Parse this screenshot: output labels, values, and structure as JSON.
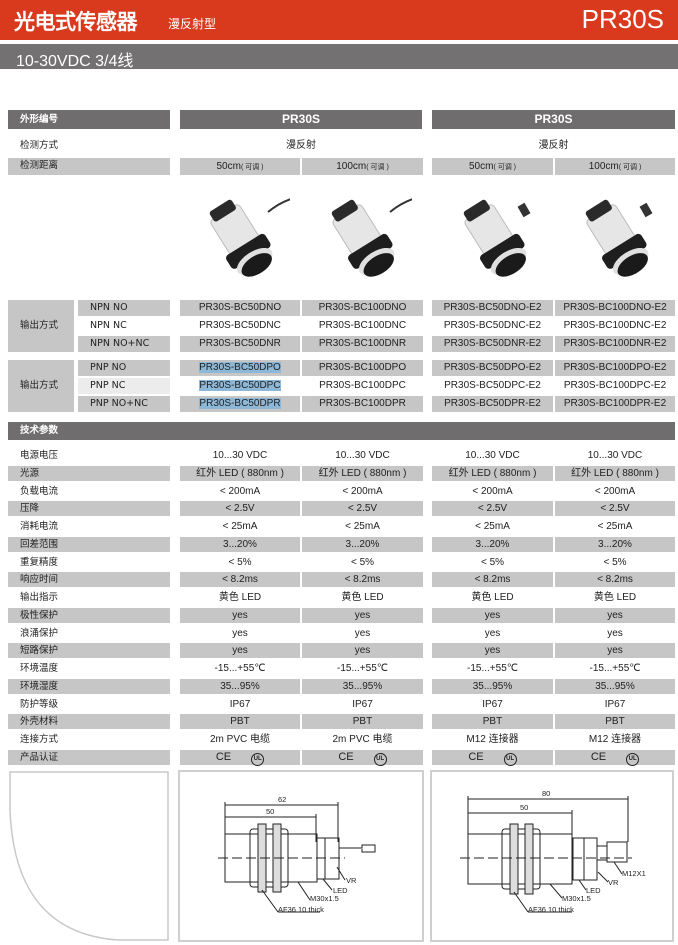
{
  "header": {
    "title": "光电式传感器",
    "subtitle": "漫反射型",
    "model": "PR30S"
  },
  "subheader": "10-30VDC 3/4线",
  "colors": {
    "brand_red": "#d9391c",
    "bar_gray": "#737172",
    "cell_gray": "#c6c6c6",
    "highlight": "#8db7d6"
  },
  "table": {
    "shape_label": "外形编号",
    "groups": [
      "PR30S",
      "PR30S"
    ],
    "detect_mode": {
      "label": "检测方式",
      "values": [
        "漫反射",
        "漫反射"
      ]
    },
    "detect_range": {
      "label": "检测距离",
      "values": [
        {
          "v": "50cm",
          "note": "( 可调 )"
        },
        {
          "v": "100cm",
          "note": "( 可调 )"
        },
        {
          "v": "50cm",
          "note": "( 可调 )"
        },
        {
          "v": "100cm",
          "note": "( 可调 )"
        }
      ]
    },
    "npn": {
      "label": "输出方式",
      "rows": [
        {
          "type": "NPN NO",
          "models": [
            "PR30S-BC50DNO",
            "PR30S-BC100DNO",
            "PR30S-BC50DNO-E2",
            "PR30S-BC100DNO-E2"
          ]
        },
        {
          "type": "NPN NC",
          "models": [
            "PR30S-BC50DNC",
            "PR30S-BC100DNC",
            "PR30S-BC50DNC-E2",
            "PR30S-BC100DNC-E2"
          ]
        },
        {
          "type": "NPN NO+NC",
          "models": [
            "PR30S-BC50DNR",
            "PR30S-BC100DNR",
            "PR30S-BC50DNR-E2",
            "PR30S-BC100DNR-E2"
          ]
        }
      ]
    },
    "pnp": {
      "label": "输出方式",
      "rows": [
        {
          "type": "PNP NO",
          "models": [
            "PR30S-BC50DPO",
            "PR30S-BC100DPO",
            "PR30S-BC50DPO-E2",
            "PR30S-BC100DPO-E2"
          ]
        },
        {
          "type": "PNP NC",
          "models": [
            "PR30S-BC50DPC",
            "PR30S-BC100DPC",
            "PR30S-BC50DPC-E2",
            "PR30S-BC100DPC-E2"
          ]
        },
        {
          "type": "PNP NO+NC",
          "models": [
            "PR30S-BC50DPR",
            "PR30S-BC100DPR",
            "PR30S-BC50DPR-E2",
            "PR30S-BC100DPR-E2"
          ]
        }
      ]
    },
    "tech_label": "技术参数",
    "specs": [
      {
        "label": "电源电压",
        "values": [
          "10...30 VDC",
          "10...30 VDC",
          "10...30 VDC",
          "10...30 VDC"
        ]
      },
      {
        "label": "光源",
        "values": [
          "红外 LED ( 880nm )",
          "红外 LED ( 880nm )",
          "红外 LED ( 880nm )",
          "红外 LED ( 880nm )"
        ]
      },
      {
        "label": "负载电流",
        "values": [
          "< 200mA",
          "< 200mA",
          "< 200mA",
          "< 200mA"
        ]
      },
      {
        "label": "压降",
        "values": [
          "< 2.5V",
          "< 2.5V",
          "< 2.5V",
          "< 2.5V"
        ]
      },
      {
        "label": "消耗电流",
        "values": [
          "< 25mA",
          "< 25mA",
          "< 25mA",
          "< 25mA"
        ]
      },
      {
        "label": "回差范围",
        "values": [
          "3...20%",
          "3...20%",
          "3...20%",
          "3...20%"
        ]
      },
      {
        "label": "重复精度",
        "values": [
          "< 5%",
          "< 5%",
          "< 5%",
          "< 5%"
        ]
      },
      {
        "label": "响应时间",
        "values": [
          "< 8.2ms",
          "< 8.2ms",
          "< 8.2ms",
          "< 8.2ms"
        ]
      },
      {
        "label": "输出指示",
        "values": [
          "黄色 LED",
          "黄色 LED",
          "黄色 LED",
          "黄色 LED"
        ]
      },
      {
        "label": "极性保护",
        "values": [
          "yes",
          "yes",
          "yes",
          "yes"
        ]
      },
      {
        "label": "浪涌保护",
        "values": [
          "yes",
          "yes",
          "yes",
          "yes"
        ]
      },
      {
        "label": "短路保护",
        "values": [
          "yes",
          "yes",
          "yes",
          "yes"
        ]
      },
      {
        "label": "环境温度",
        "values": [
          "-15...+55℃",
          "-15...+55℃",
          "-15...+55℃",
          "-15...+55℃"
        ]
      },
      {
        "label": "环境湿度",
        "values": [
          "35...95%",
          "35...95%",
          "35...95%",
          "35...95%"
        ]
      },
      {
        "label": "防护等级",
        "values": [
          "IP67",
          "IP67",
          "IP67",
          "IP67"
        ]
      },
      {
        "label": "外壳材料",
        "values": [
          "PBT",
          "PBT",
          "PBT",
          "PBT"
        ]
      },
      {
        "label": "连接方式",
        "values": [
          "2m PVC 电缆",
          "2m PVC 电缆",
          "M12  连接器",
          "M12  连接器"
        ]
      },
      {
        "label": "产品认证",
        "values": [
          "",
          "",
          "",
          ""
        ],
        "certs": [
          "CE",
          "UL"
        ]
      }
    ]
  },
  "drawings": [
    {
      "overall": "62",
      "body": "50",
      "labels": [
        "VR",
        "LED",
        "M30x1.5",
        "AF36  10 thick"
      ]
    },
    {
      "overall": "80",
      "body": "50",
      "labels": [
        "M12X1",
        "VR",
        "LED",
        "M30x1.5",
        "AF36  10 thick"
      ]
    }
  ]
}
